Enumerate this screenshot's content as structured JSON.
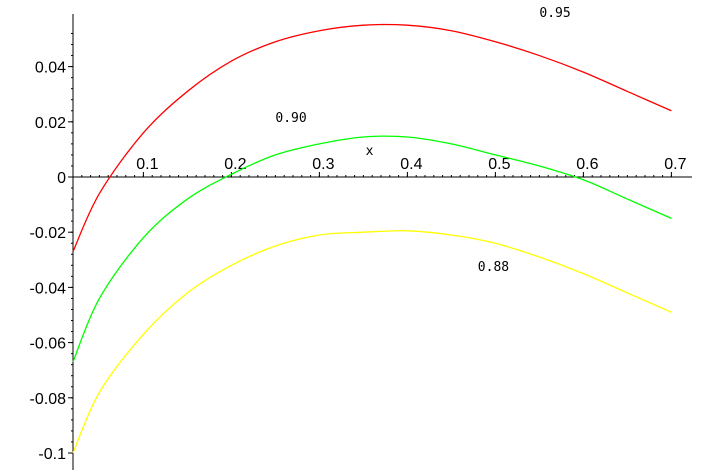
{
  "chart_data": {
    "type": "line",
    "xlabel": "x",
    "ylabel": "",
    "title": "",
    "xlim": [
      0.02,
      0.7
    ],
    "ylim": [
      -0.1,
      0.055
    ],
    "x_ticks": [
      {
        "value": 0.1,
        "label": "0.1"
      },
      {
        "value": 0.2,
        "label": "0.2"
      },
      {
        "value": 0.3,
        "label": "0.3"
      },
      {
        "value": 0.4,
        "label": "0.4"
      },
      {
        "value": 0.5,
        "label": "0.5"
      },
      {
        "value": 0.6,
        "label": "0.6"
      },
      {
        "value": 0.7,
        "label": "0.7"
      }
    ],
    "y_ticks": [
      {
        "value": 0.04,
        "label": "0.04"
      },
      {
        "value": 0.02,
        "label": "0.02"
      },
      {
        "value": 0,
        "label": "0"
      },
      {
        "value": -0.02,
        "label": "-0.02"
      },
      {
        "value": -0.04,
        "label": "-0.04"
      },
      {
        "value": -0.06,
        "label": "-0.06"
      },
      {
        "value": -0.08,
        "label": "-0.08"
      },
      {
        "value": -0.1,
        "label": "-0.1"
      }
    ],
    "grid": false,
    "legend": "none",
    "series": [
      {
        "label": "0.95",
        "color": "#ff0000",
        "label_at": [
          0.55,
          0.058
        ],
        "x": [
          0.02,
          0.05,
          0.1,
          0.15,
          0.2,
          0.25,
          0.3,
          0.35,
          0.4,
          0.45,
          0.5,
          0.55,
          0.6,
          0.65,
          0.7
        ],
        "y": [
          -0.027,
          -0.006,
          0.016,
          0.031,
          0.042,
          0.049,
          0.053,
          0.055,
          0.055,
          0.053,
          0.049,
          0.044,
          0.038,
          0.031,
          0.024
        ]
      },
      {
        "label": "0.90",
        "color": "#00ff00",
        "label_at": [
          0.25,
          0.02
        ],
        "x": [
          0.02,
          0.05,
          0.1,
          0.15,
          0.2,
          0.25,
          0.3,
          0.35,
          0.4,
          0.45,
          0.5,
          0.55,
          0.6,
          0.65,
          0.7
        ],
        "y": [
          -0.067,
          -0.044,
          -0.022,
          -0.008,
          0.001,
          0.008,
          0.012,
          0.0145,
          0.0145,
          0.012,
          0.008,
          0.004,
          -0.001,
          -0.008,
          -0.015
        ]
      },
      {
        "label": "0.88",
        "color": "#ffff00",
        "label_at": [
          0.48,
          -0.034
        ],
        "x": [
          0.02,
          0.05,
          0.1,
          0.15,
          0.2,
          0.25,
          0.3,
          0.35,
          0.4,
          0.45,
          0.5,
          0.55,
          0.6,
          0.65,
          0.7
        ],
        "y": [
          -0.1,
          -0.078,
          -0.057,
          -0.042,
          -0.032,
          -0.025,
          -0.021,
          -0.02,
          -0.0195,
          -0.021,
          -0.024,
          -0.029,
          -0.035,
          -0.042,
          -0.049
        ]
      }
    ]
  }
}
